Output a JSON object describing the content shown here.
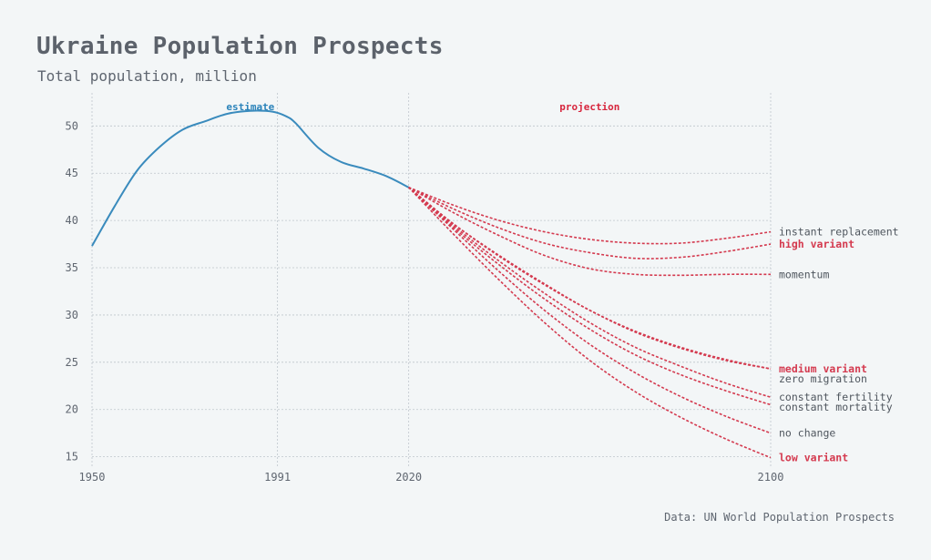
{
  "title": "Ukraine Population Prospects",
  "subtitle": "Total population, million",
  "source": "Data: UN World Population Prospects",
  "chart_data": {
    "type": "line",
    "x_ticks": [
      1950,
      1991,
      2020,
      2100
    ],
    "y_ticks": [
      15,
      20,
      25,
      30,
      35,
      40,
      45,
      50
    ],
    "xlim": [
      1950,
      2100
    ],
    "ylim": [
      14,
      53.5
    ],
    "grid": true,
    "regions": [
      {
        "label": "estimate",
        "color": "#2b83ba"
      },
      {
        "label": "projection",
        "color": "#d7263d"
      }
    ],
    "estimate": {
      "color": "#3a8bbd",
      "x": [
        1950,
        1955,
        1960,
        1965,
        1970,
        1975,
        1980,
        1985,
        1990,
        1993,
        1995,
        2000,
        2005,
        2010,
        2015,
        2020
      ],
      "y": [
        37.3,
        41.5,
        45.3,
        47.8,
        49.6,
        50.5,
        51.3,
        51.6,
        51.5,
        51.0,
        50.3,
        47.7,
        46.2,
        45.5,
        44.7,
        43.5
      ]
    },
    "projection_color": "#d43a4f",
    "series": [
      {
        "name": "instant replacement",
        "highlight": false,
        "x": [
          2020,
          2030,
          2040,
          2050,
          2060,
          2070,
          2080,
          2090,
          2100
        ],
        "y": [
          43.5,
          41.6,
          40.0,
          38.8,
          38.0,
          37.6,
          37.6,
          38.1,
          38.8
        ]
      },
      {
        "name": "high variant",
        "highlight": true,
        "x": [
          2020,
          2030,
          2040,
          2050,
          2060,
          2070,
          2080,
          2090,
          2100
        ],
        "y": [
          43.5,
          41.2,
          39.2,
          37.6,
          36.6,
          36.0,
          36.1,
          36.7,
          37.5
        ]
      },
      {
        "name": "momentum",
        "highlight": false,
        "x": [
          2020,
          2030,
          2040,
          2050,
          2060,
          2070,
          2080,
          2090,
          2100
        ],
        "y": [
          43.5,
          40.8,
          38.4,
          36.3,
          34.9,
          34.3,
          34.2,
          34.3,
          34.3
        ]
      },
      {
        "name": "medium variant",
        "highlight": true,
        "x": [
          2020,
          2030,
          2040,
          2050,
          2060,
          2070,
          2080,
          2090,
          2100
        ],
        "y": [
          43.5,
          39.6,
          36.3,
          33.3,
          30.5,
          28.3,
          26.6,
          25.3,
          24.3
        ]
      },
      {
        "name": "zero migration",
        "highlight": false,
        "x": [
          2020,
          2030,
          2040,
          2050,
          2060,
          2070,
          2080,
          2090,
          2100
        ],
        "y": [
          43.5,
          39.6,
          36.2,
          33.2,
          30.5,
          28.2,
          26.5,
          25.2,
          24.3
        ]
      },
      {
        "name": "constant fertility",
        "highlight": false,
        "x": [
          2020,
          2030,
          2040,
          2050,
          2060,
          2070,
          2080,
          2090,
          2100
        ],
        "y": [
          43.5,
          39.4,
          35.7,
          32.3,
          29.2,
          26.6,
          24.6,
          22.8,
          21.3
        ]
      },
      {
        "name": "constant mortality",
        "highlight": false,
        "x": [
          2020,
          2030,
          2040,
          2050,
          2060,
          2070,
          2080,
          2090,
          2100
        ],
        "y": [
          43.5,
          39.2,
          35.3,
          31.7,
          28.5,
          25.8,
          23.7,
          22.0,
          20.5
        ]
      },
      {
        "name": "no change",
        "highlight": false,
        "x": [
          2020,
          2030,
          2040,
          2050,
          2060,
          2070,
          2080,
          2090,
          2100
        ],
        "y": [
          43.5,
          39.0,
          34.6,
          30.5,
          26.9,
          23.9,
          21.4,
          19.3,
          17.5
        ]
      },
      {
        "name": "low variant",
        "highlight": true,
        "x": [
          2020,
          2030,
          2040,
          2050,
          2060,
          2070,
          2080,
          2090,
          2100
        ],
        "y": [
          43.5,
          38.5,
          33.7,
          29.2,
          25.2,
          21.9,
          19.2,
          16.9,
          14.9
        ]
      }
    ]
  }
}
